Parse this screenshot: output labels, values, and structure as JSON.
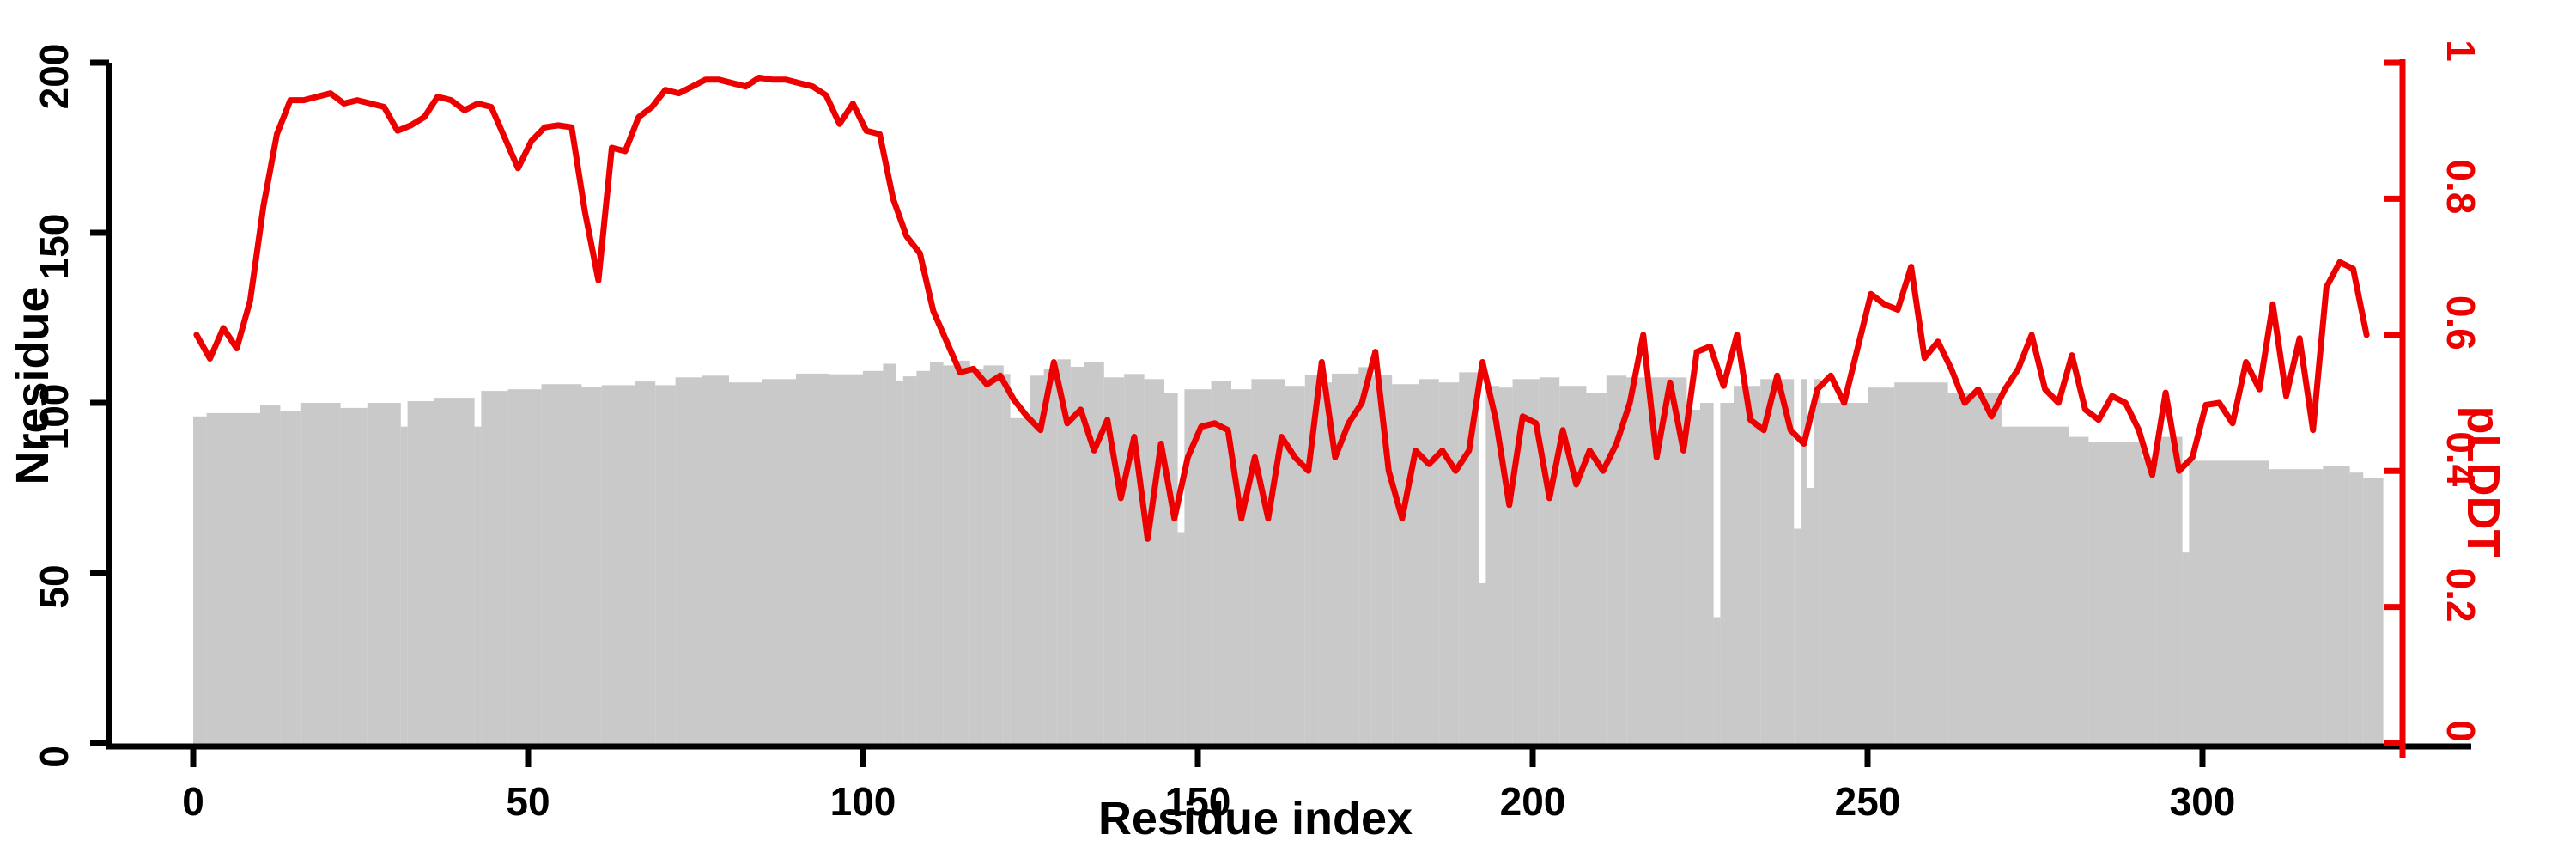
{
  "chart_data": {
    "type": "composite",
    "title": "",
    "xlabel": "Residue index",
    "ylabel_left": "Nresidue",
    "ylabel_right": "pLDDT",
    "x_ticks": [
      0,
      50,
      100,
      150,
      200,
      250,
      300
    ],
    "y_left_ticks": [
      0,
      50,
      100,
      150,
      200
    ],
    "y_right_ticks": [
      0,
      0.2,
      0.4,
      0.6,
      0.8,
      1
    ],
    "x_range": [
      0,
      330
    ],
    "y_left_range": [
      0,
      200
    ],
    "y_right_range": [
      0,
      1
    ],
    "grid": false,
    "legend": "none",
    "colors": {
      "bars": "#c9c9c9",
      "line": "#ec0000",
      "axis": "#000000"
    },
    "n_residues": 327,
    "series": [
      {
        "name": "Nresidue",
        "type": "bar",
        "axis": "left",
        "color": "#c9c9c9",
        "encoding": "runs [from_residue, to_residue, value]",
        "runs": [
          [
            1,
            2,
            96
          ],
          [
            3,
            10,
            97
          ],
          [
            11,
            13,
            99.5
          ],
          [
            14,
            16,
            97.5
          ],
          [
            17,
            22,
            100
          ],
          [
            23,
            26,
            98.5
          ],
          [
            27,
            31,
            100
          ],
          [
            32,
            32,
            93
          ],
          [
            33,
            36,
            100.5
          ],
          [
            37,
            42,
            101.5
          ],
          [
            43,
            43,
            93
          ],
          [
            44,
            47,
            103.5
          ],
          [
            48,
            52,
            104
          ],
          [
            53,
            58,
            105.5
          ],
          [
            59,
            61,
            104.8
          ],
          [
            62,
            66,
            105.2
          ],
          [
            67,
            69,
            106.3
          ],
          [
            70,
            72,
            105.2
          ],
          [
            73,
            76,
            107.5
          ],
          [
            77,
            80,
            108
          ],
          [
            81,
            85,
            106
          ],
          [
            86,
            90,
            107
          ],
          [
            91,
            95,
            108.6
          ],
          [
            96,
            100,
            108.4
          ],
          [
            101,
            103,
            109.4
          ],
          [
            104,
            105,
            111.5
          ],
          [
            106,
            106,
            106.6
          ],
          [
            107,
            108,
            107.8
          ],
          [
            109,
            110,
            109.4
          ],
          [
            111,
            112,
            112
          ],
          [
            113,
            114,
            111
          ],
          [
            115,
            116,
            112.4
          ],
          [
            117,
            118,
            110
          ],
          [
            119,
            121,
            111
          ],
          [
            122,
            122,
            108.5
          ],
          [
            123,
            125,
            95.5
          ],
          [
            126,
            127,
            108
          ],
          [
            128,
            129,
            110
          ],
          [
            130,
            131,
            112.8
          ],
          [
            132,
            133,
            110.6
          ],
          [
            134,
            136,
            112
          ],
          [
            137,
            139,
            107.5
          ],
          [
            140,
            142,
            108.5
          ],
          [
            143,
            145,
            107
          ],
          [
            146,
            147,
            103
          ],
          [
            148,
            148,
            62
          ],
          [
            149,
            152,
            104
          ],
          [
            153,
            155,
            106.5
          ],
          [
            156,
            158,
            104
          ],
          [
            159,
            163,
            107
          ],
          [
            164,
            166,
            105
          ],
          [
            167,
            168,
            108.3
          ],
          [
            169,
            170,
            106
          ],
          [
            171,
            174,
            108.6
          ],
          [
            175,
            176,
            110.5
          ],
          [
            177,
            179,
            108.3
          ],
          [
            180,
            183,
            105.5
          ],
          [
            184,
            186,
            107
          ],
          [
            187,
            189,
            106
          ],
          [
            190,
            192,
            109
          ],
          [
            193,
            193,
            47
          ],
          [
            194,
            195,
            105
          ],
          [
            196,
            197,
            104.5
          ],
          [
            198,
            201,
            107
          ],
          [
            202,
            204,
            107.5
          ],
          [
            205,
            208,
            105
          ],
          [
            209,
            211,
            103
          ],
          [
            212,
            214,
            108
          ],
          [
            215,
            223,
            107.5
          ],
          [
            224,
            225,
            98
          ],
          [
            226,
            227,
            100
          ],
          [
            228,
            228,
            37
          ],
          [
            229,
            230,
            100
          ],
          [
            231,
            234,
            105
          ],
          [
            235,
            239,
            107
          ],
          [
            240,
            240,
            63
          ],
          [
            241,
            241,
            107
          ],
          [
            242,
            242,
            75
          ],
          [
            243,
            243,
            107
          ],
          [
            244,
            250,
            100
          ],
          [
            251,
            254,
            104.5
          ],
          [
            255,
            262,
            106
          ],
          [
            263,
            270,
            103
          ],
          [
            271,
            280,
            93
          ],
          [
            281,
            283,
            90
          ],
          [
            284,
            291,
            88.5
          ],
          [
            292,
            293,
            84
          ],
          [
            294,
            297,
            90
          ],
          [
            298,
            298,
            56
          ],
          [
            299,
            310,
            83
          ],
          [
            311,
            318,
            80.5
          ],
          [
            319,
            322,
            81.5
          ],
          [
            323,
            324,
            79.5
          ],
          [
            325,
            327,
            78
          ]
        ]
      },
      {
        "name": "pLDDT",
        "type": "line",
        "axis": "right",
        "color": "#ec0000",
        "r_start": 1,
        "r_step": 2,
        "values": [
          0.6,
          0.565,
          0.61,
          0.58,
          0.65,
          0.79,
          0.895,
          0.945,
          0.945,
          0.95,
          0.955,
          0.94,
          0.945,
          0.94,
          0.935,
          0.9,
          0.908,
          0.92,
          0.95,
          0.945,
          0.93,
          0.94,
          0.935,
          0.89,
          0.845,
          0.885,
          0.905,
          0.908,
          0.905,
          0.78,
          0.68,
          0.875,
          0.87,
          0.92,
          0.935,
          0.96,
          0.955,
          0.965,
          0.975,
          0.975,
          0.97,
          0.965,
          0.978,
          0.975,
          0.975,
          0.97,
          0.965,
          0.952,
          0.91,
          0.94,
          0.9,
          0.895,
          0.8,
          0.745,
          0.72,
          0.635,
          0.59,
          0.545,
          0.55,
          0.527,
          0.54,
          0.505,
          0.48,
          0.46,
          0.56,
          0.47,
          0.49,
          0.43,
          0.475,
          0.36,
          0.45,
          0.3,
          0.44,
          0.33,
          0.42,
          0.465,
          0.47,
          0.46,
          0.33,
          0.42,
          0.33,
          0.45,
          0.42,
          0.4,
          0.56,
          0.42,
          0.47,
          0.5,
          0.575,
          0.4,
          0.33,
          0.43,
          0.41,
          0.43,
          0.4,
          0.43,
          0.56,
          0.475,
          0.35,
          0.48,
          0.47,
          0.36,
          0.46,
          0.38,
          0.43,
          0.4,
          0.44,
          0.5,
          0.6,
          0.42,
          0.53,
          0.43,
          0.575,
          0.583,
          0.525,
          0.6,
          0.475,
          0.46,
          0.54,
          0.46,
          0.44,
          0.52,
          0.54,
          0.5,
          0.58,
          0.66,
          0.645,
          0.637,
          0.7,
          0.566,
          0.59,
          0.55,
          0.5,
          0.52,
          0.48,
          0.52,
          0.55,
          0.6,
          0.52,
          0.5,
          0.57,
          0.49,
          0.475,
          0.51,
          0.5,
          0.46,
          0.394,
          0.515,
          0.4,
          0.42,
          0.497,
          0.5,
          0.47,
          0.56,
          0.52,
          0.645,
          0.51,
          0.595,
          0.46,
          0.67,
          0.707,
          0.697,
          0.6
        ]
      }
    ]
  }
}
